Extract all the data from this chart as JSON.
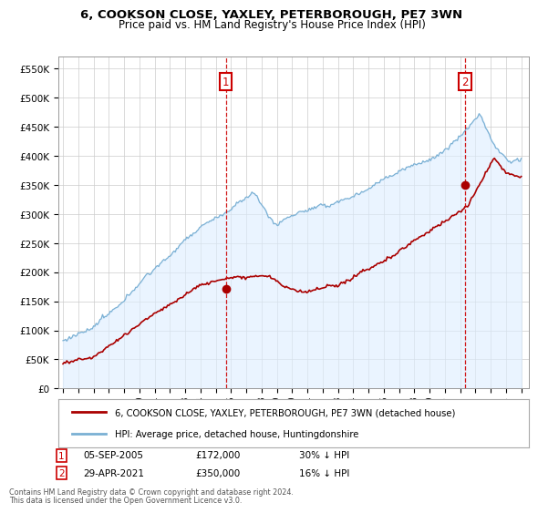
{
  "title": "6, COOKSON CLOSE, YAXLEY, PETERBOROUGH, PE7 3WN",
  "subtitle": "Price paid vs. HM Land Registry's House Price Index (HPI)",
  "ylabel_ticks": [
    "£0",
    "£50K",
    "£100K",
    "£150K",
    "£200K",
    "£250K",
    "£300K",
    "£350K",
    "£400K",
    "£450K",
    "£500K",
    "£550K"
  ],
  "ytick_values": [
    0,
    50000,
    100000,
    150000,
    200000,
    250000,
    300000,
    350000,
    400000,
    450000,
    500000,
    550000
  ],
  "ylim": [
    0,
    570000
  ],
  "xlim_start": 1994.7,
  "xlim_end": 2025.5,
  "sale1_x": 2005.67,
  "sale1_y": 172000,
  "sale2_x": 2021.33,
  "sale2_y": 350000,
  "sale1_date": "05-SEP-2005",
  "sale1_price": "£172,000",
  "sale1_hpi": "30% ↓ HPI",
  "sale2_date": "29-APR-2021",
  "sale2_price": "£350,000",
  "sale2_hpi": "16% ↓ HPI",
  "legend_line1": "6, COOKSON CLOSE, YAXLEY, PETERBOROUGH, PE7 3WN (detached house)",
  "legend_line2": "HPI: Average price, detached house, Huntingdonshire",
  "footer": "Contains HM Land Registry data © Crown copyright and database right 2024.\nThis data is licensed under the Open Government Licence v3.0.",
  "price_color": "#aa0000",
  "hpi_color": "#7ab0d4",
  "hpi_fill_color": "#ddeeff",
  "background_color": "#ffffff",
  "grid_color": "#cccccc",
  "label_box_color": "#cc0000"
}
